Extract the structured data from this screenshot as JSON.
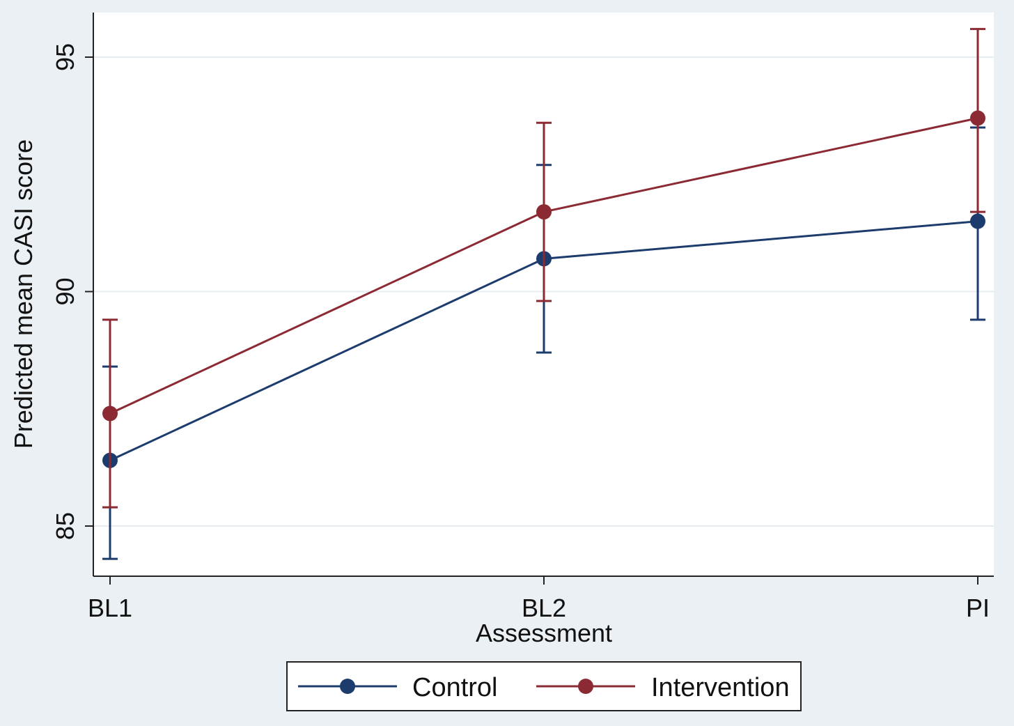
{
  "colors": {
    "background": "#eaf0f3",
    "plot_background": "#ffffff",
    "grid": "#e6edf0",
    "axis": "#222222",
    "control": "#1d3c6e",
    "intervention": "#8b2a33"
  },
  "chart_data": {
    "type": "line",
    "title": "",
    "xlabel": "Assessment",
    "ylabel": "Predicted mean CASI score",
    "categories": [
      "BL1",
      "BL2",
      "PI"
    ],
    "ylim": [
      84.0,
      96.0
    ],
    "yticks": [
      85,
      90,
      95
    ],
    "grid": true,
    "legend_position": "bottom",
    "error_bars": true,
    "series": [
      {
        "name": "Control",
        "values": [
          86.4,
          90.7,
          91.5
        ],
        "ci_lower": [
          84.3,
          88.7,
          89.4
        ],
        "ci_upper": [
          88.4,
          92.7,
          93.5
        ]
      },
      {
        "name": "Intervention",
        "values": [
          87.4,
          91.7,
          93.7
        ],
        "ci_lower": [
          85.4,
          89.8,
          91.7
        ],
        "ci_upper": [
          89.4,
          93.6,
          95.6
        ]
      }
    ]
  }
}
